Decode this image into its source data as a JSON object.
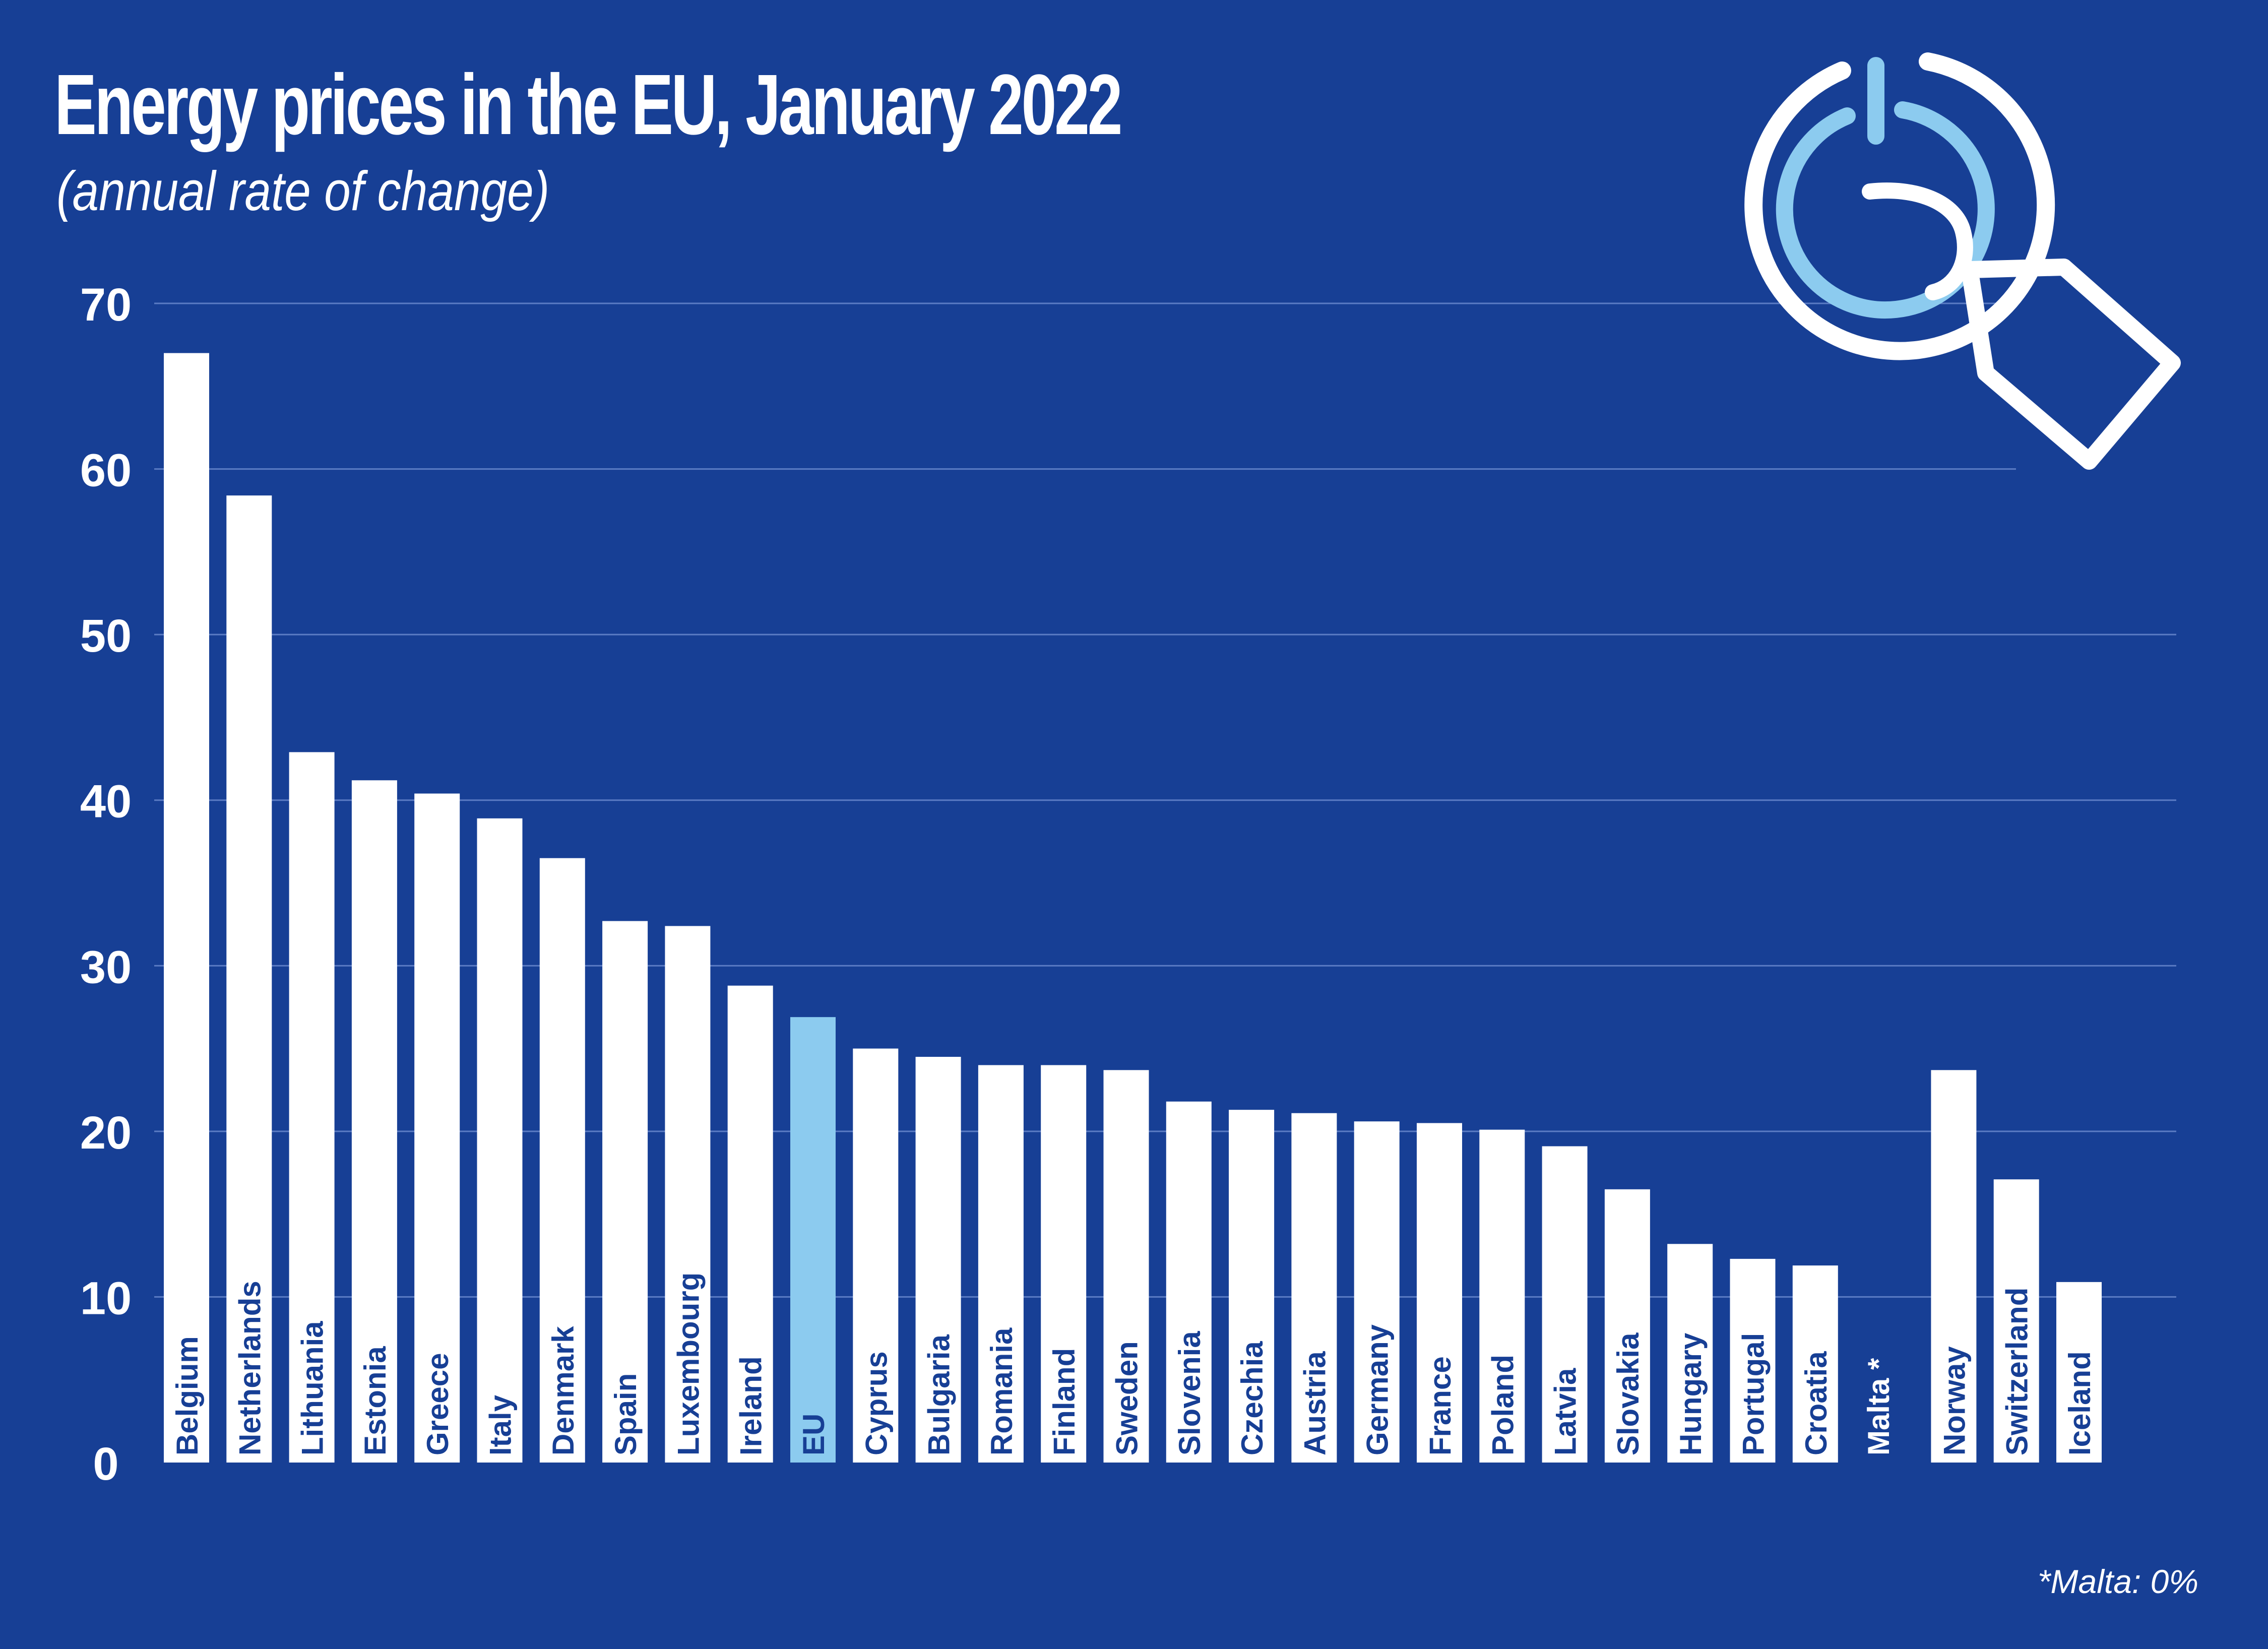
{
  "header": {
    "title": "Energy prices in the EU, January 2022",
    "subtitle": "(annual rate of change)"
  },
  "footnote": "*Malta: 0%",
  "icon": "power-price-tag-icon",
  "colors": {
    "background": "#173f95",
    "bar": "#ffffff",
    "bar_highlight": "#8ccbef",
    "bar_label": "#173f95",
    "gridline": "#5b7cc4",
    "text": "#ffffff",
    "icon_primary": "#ffffff",
    "icon_accent": "#8ccbef"
  },
  "chart_data": {
    "type": "bar",
    "title": "Energy prices in the EU, January 2022",
    "subtitle": "(annual rate of change)",
    "xlabel": "",
    "ylabel": "",
    "ylim": [
      0,
      70
    ],
    "yticks": [
      0,
      10,
      20,
      30,
      40,
      50,
      60,
      70
    ],
    "grid": true,
    "highlight": "EU",
    "categories": [
      "Belgium",
      "Netherlands",
      "Lithuania",
      "Estonia",
      "Greece",
      "Italy",
      "Denmark",
      "Spain",
      "Luxembourg",
      "Ireland",
      "EU",
      "Cyprus",
      "Bulgaria",
      "Romania",
      "Finland",
      "Sweden",
      "Slovenia",
      "Czechia",
      "Austria",
      "Germany",
      "France",
      "Poland",
      "Latvia",
      "Slovakia",
      "Hungary",
      "Portugal",
      "Croatia",
      "Malta *",
      "Norway",
      "Switzerland",
      "Iceland"
    ],
    "values": [
      67.0,
      58.4,
      42.9,
      41.2,
      40.4,
      38.9,
      36.5,
      32.7,
      32.4,
      28.8,
      26.9,
      25.0,
      24.5,
      24.0,
      24.0,
      23.7,
      21.8,
      21.3,
      21.1,
      20.6,
      20.5,
      20.1,
      19.1,
      16.5,
      13.2,
      12.3,
      11.9,
      0.0,
      23.7,
      17.1,
      10.9
    ]
  }
}
